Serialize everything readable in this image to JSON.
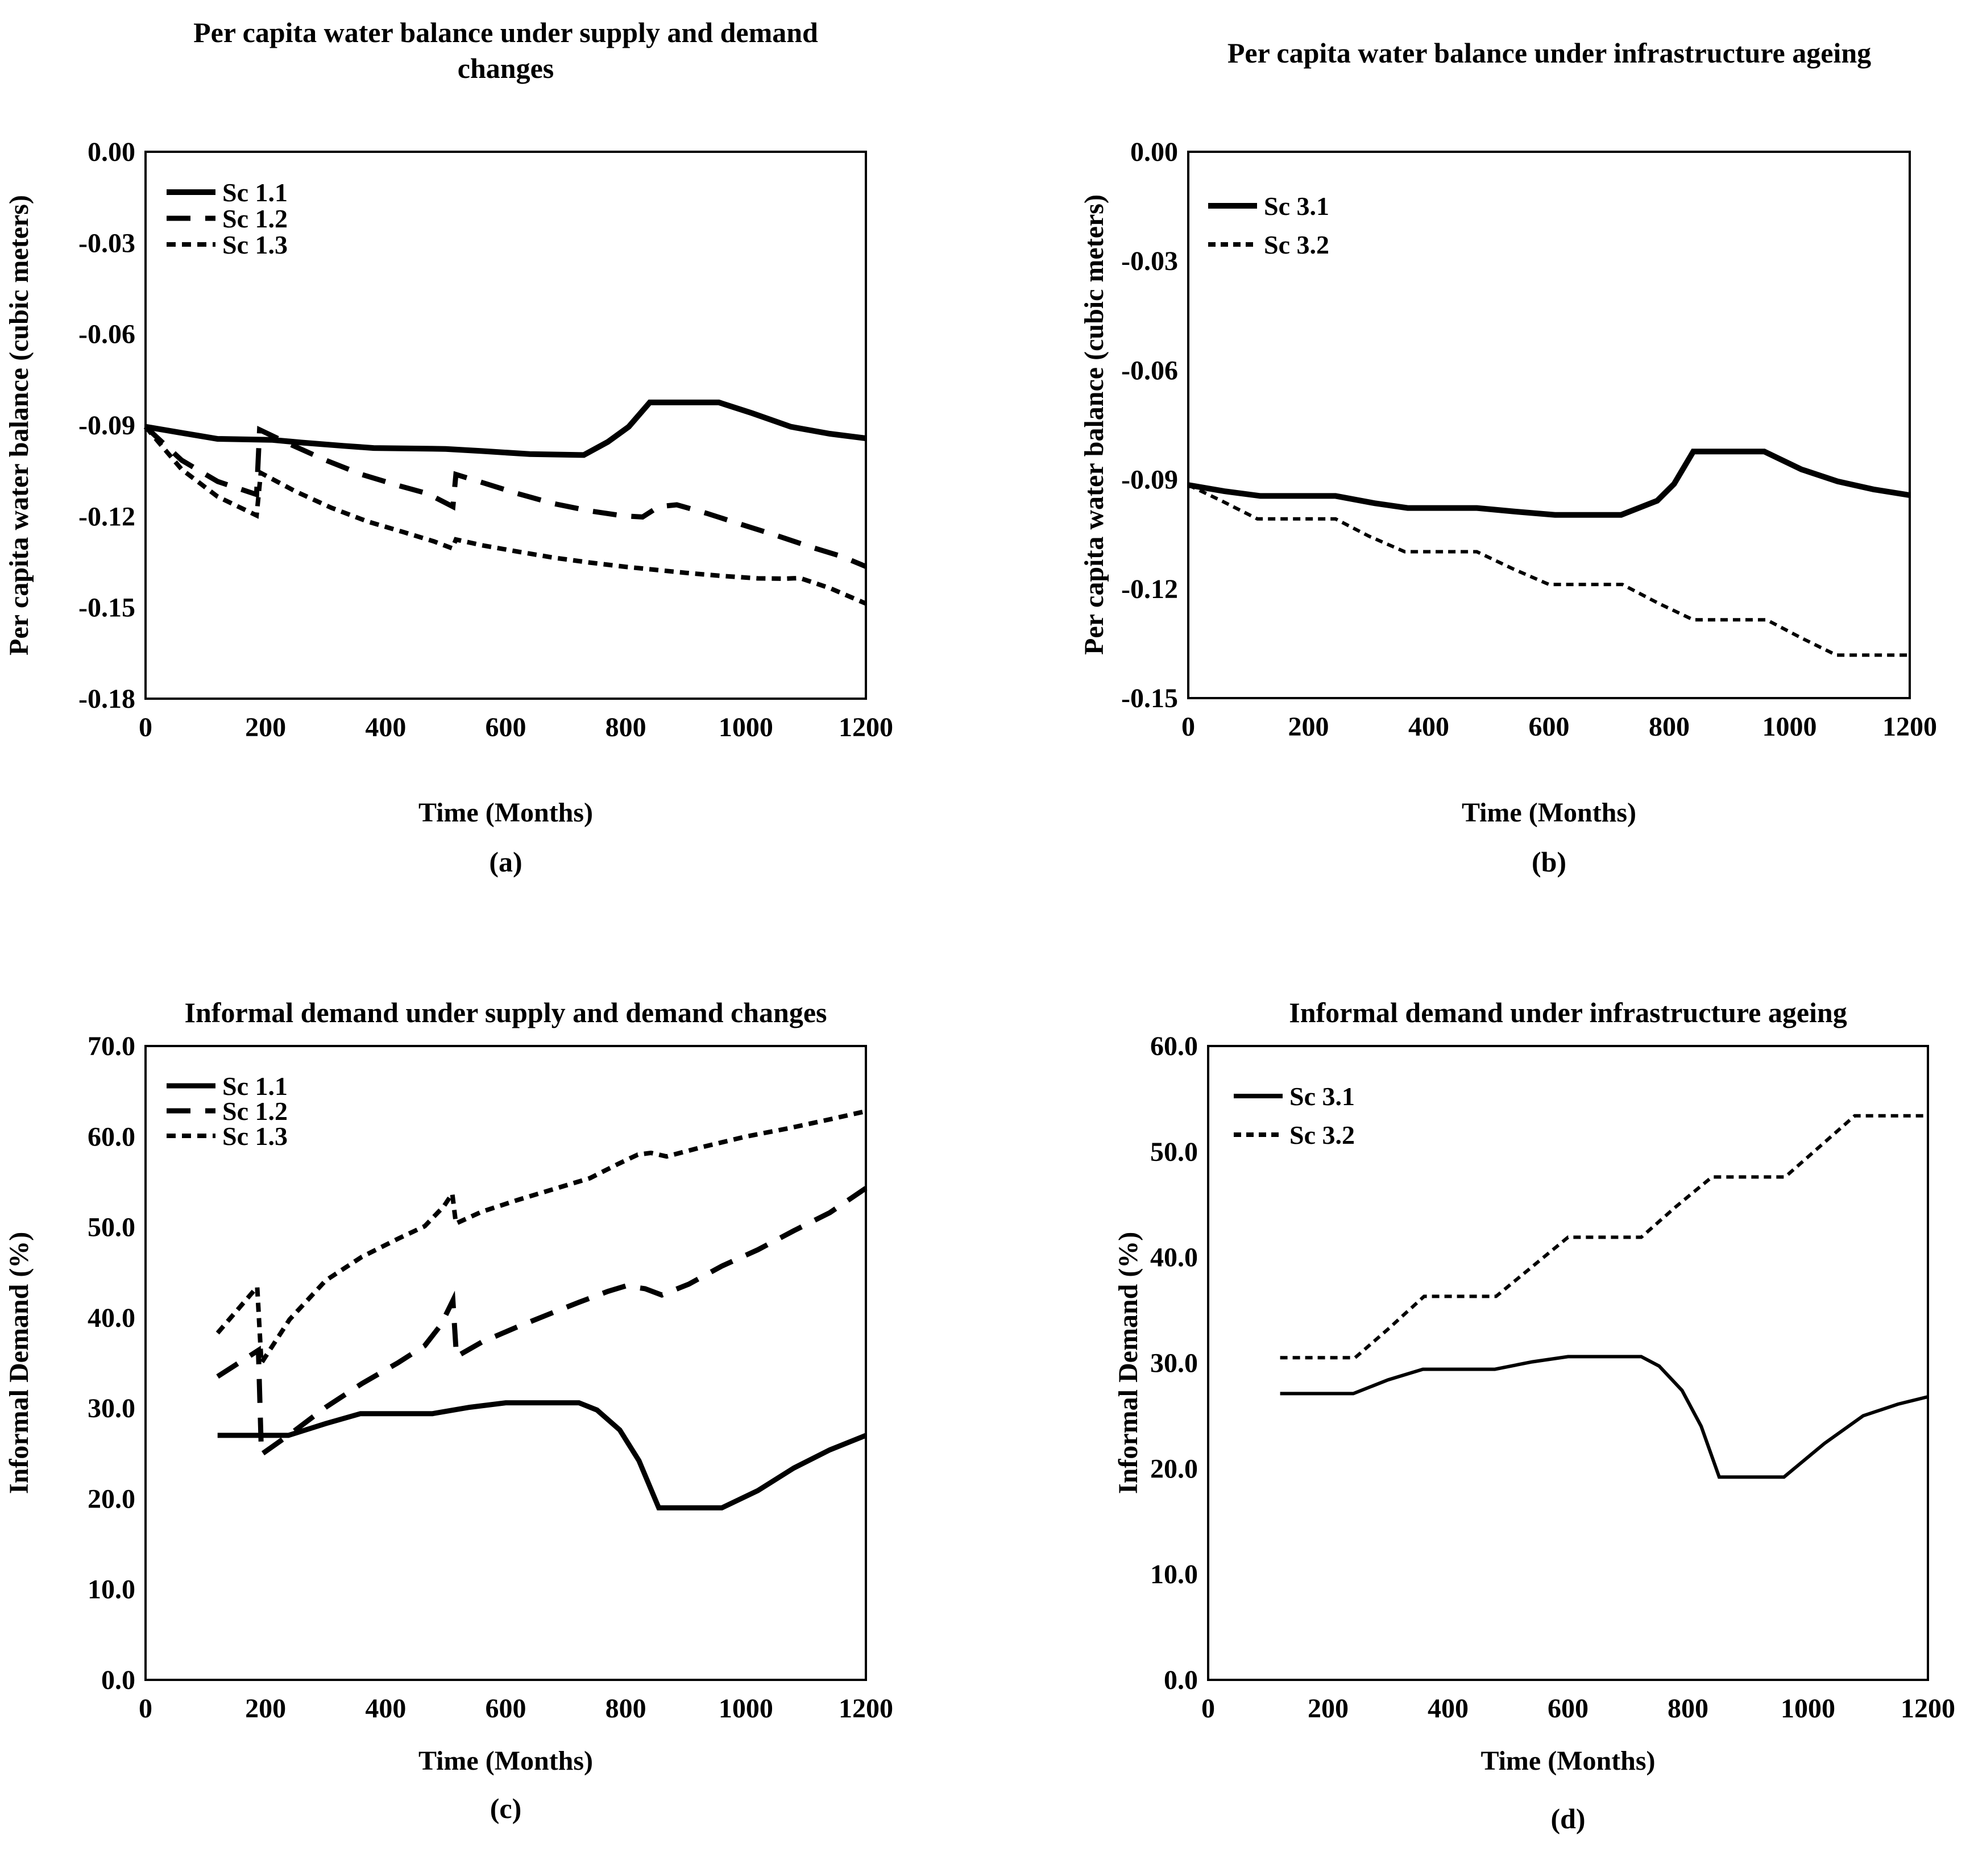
{
  "colors": {
    "line": "#000000",
    "background": "#ffffff",
    "text": "#000000"
  },
  "chart_data": [
    {
      "id": "a",
      "type": "line",
      "caption": "(a)",
      "title": "Per capita water balance under supply and demand changes",
      "title_lines": [
        "Per capita water balance under supply and demand",
        "changes"
      ],
      "xlabel": "Time (Months)",
      "ylabel": "Per capita water balance (cubic meters)",
      "x_range": [
        0,
        1200
      ],
      "y_range": [
        -0.18,
        0
      ],
      "x_ticks": [
        0,
        200,
        400,
        600,
        800,
        1000,
        1200
      ],
      "y_ticks": [
        {
          "value": 0,
          "label": "0.00"
        },
        {
          "value": -0.03,
          "label": "-0.03"
        },
        {
          "value": -0.06,
          "label": "-0.06"
        },
        {
          "value": -0.09,
          "label": "-0.09"
        },
        {
          "value": -0.12,
          "label": "-0.12"
        },
        {
          "value": -0.15,
          "label": "-0.15"
        },
        {
          "value": -0.18,
          "label": "-0.18"
        }
      ],
      "grid": false,
      "legend_position": "top-left",
      "series": [
        {
          "name": "Sc 1.1",
          "line_style": "solid",
          "points": [
            [
              0,
              -0.0905
            ],
            [
              60,
              -0.0925
            ],
            [
              120,
              -0.0945
            ],
            [
              210,
              -0.0948
            ],
            [
              260,
              -0.0957
            ],
            [
              330,
              -0.0968
            ],
            [
              380,
              -0.0975
            ],
            [
              500,
              -0.0978
            ],
            [
              560,
              -0.0985
            ],
            [
              640,
              -0.0995
            ],
            [
              730,
              -0.0998
            ],
            [
              770,
              -0.0955
            ],
            [
              805,
              -0.0905
            ],
            [
              840,
              -0.0825
            ],
            [
              955,
              -0.0825
            ],
            [
              1010,
              -0.086
            ],
            [
              1075,
              -0.0905
            ],
            [
              1140,
              -0.0928
            ],
            [
              1200,
              -0.0943
            ]
          ]
        },
        {
          "name": "Sc 1.2",
          "line_style": "long-dash",
          "points": [
            [
              0,
              -0.0905
            ],
            [
              60,
              -0.1015
            ],
            [
              120,
              -0.1085
            ],
            [
              185,
              -0.1128
            ],
            [
              190,
              -0.0915
            ],
            [
              240,
              -0.0962
            ],
            [
              300,
              -0.1015
            ],
            [
              360,
              -0.1062
            ],
            [
              420,
              -0.1098
            ],
            [
              470,
              -0.1125
            ],
            [
              512,
              -0.1168
            ],
            [
              517,
              -0.1062
            ],
            [
              560,
              -0.1088
            ],
            [
              620,
              -0.1125
            ],
            [
              680,
              -0.1158
            ],
            [
              740,
              -0.1182
            ],
            [
              795,
              -0.1198
            ],
            [
              828,
              -0.1202
            ],
            [
              855,
              -0.1168
            ],
            [
              885,
              -0.1162
            ],
            [
              935,
              -0.119
            ],
            [
              990,
              -0.1225
            ],
            [
              1050,
              -0.1262
            ],
            [
              1110,
              -0.1302
            ],
            [
              1160,
              -0.1332
            ],
            [
              1200,
              -0.1365
            ]
          ]
        },
        {
          "name": "Sc 1.3",
          "line_style": "short-dash",
          "points": [
            [
              0,
              -0.0905
            ],
            [
              60,
              -0.1045
            ],
            [
              120,
              -0.1135
            ],
            [
              185,
              -0.1197
            ],
            [
              192,
              -0.1057
            ],
            [
              250,
              -0.1118
            ],
            [
              310,
              -0.1172
            ],
            [
              370,
              -0.1217
            ],
            [
              430,
              -0.1252
            ],
            [
              480,
              -0.1282
            ],
            [
              511,
              -0.1305
            ],
            [
              517,
              -0.1276
            ],
            [
              560,
              -0.1295
            ],
            [
              620,
              -0.1316
            ],
            [
              680,
              -0.1336
            ],
            [
              740,
              -0.1352
            ],
            [
              800,
              -0.1366
            ],
            [
              850,
              -0.1376
            ],
            [
              900,
              -0.1386
            ],
            [
              960,
              -0.1396
            ],
            [
              1020,
              -0.1404
            ],
            [
              1065,
              -0.1405
            ],
            [
              1090,
              -0.1403
            ],
            [
              1140,
              -0.1436
            ],
            [
              1200,
              -0.1487
            ]
          ]
        }
      ]
    },
    {
      "id": "b",
      "type": "line",
      "caption": "(b)",
      "title": "Per capita water balance under infrastructure ageing",
      "title_lines": [
        "Per capita water balance under infrastructure ageing"
      ],
      "xlabel": "Time (Months)",
      "ylabel": "Per capita water balance (cubic meters)",
      "x_range": [
        0,
        1200
      ],
      "y_range": [
        -0.15,
        0
      ],
      "x_ticks": [
        0,
        200,
        400,
        600,
        800,
        1000,
        1200
      ],
      "y_ticks": [
        {
          "value": 0,
          "label": "0.00"
        },
        {
          "value": -0.03,
          "label": "-0.03"
        },
        {
          "value": -0.06,
          "label": "-0.06"
        },
        {
          "value": -0.09,
          "label": "-0.09"
        },
        {
          "value": -0.12,
          "label": "-0.12"
        },
        {
          "value": -0.15,
          "label": "-0.15"
        }
      ],
      "grid": false,
      "legend_position": "top-left",
      "series": [
        {
          "name": "Sc 3.1",
          "line_style": "solid",
          "points": [
            [
              0,
              -0.0915
            ],
            [
              60,
              -0.0932
            ],
            [
              120,
              -0.0945
            ],
            [
              245,
              -0.0945
            ],
            [
              310,
              -0.0965
            ],
            [
              365,
              -0.0978
            ],
            [
              480,
              -0.0978
            ],
            [
              545,
              -0.0988
            ],
            [
              610,
              -0.0997
            ],
            [
              720,
              -0.0997
            ],
            [
              780,
              -0.0958
            ],
            [
              808,
              -0.0912
            ],
            [
              840,
              -0.0823
            ],
            [
              958,
              -0.0823
            ],
            [
              1020,
              -0.0872
            ],
            [
              1080,
              -0.0905
            ],
            [
              1140,
              -0.0927
            ],
            [
              1200,
              -0.0943
            ]
          ]
        },
        {
          "name": "Sc 3.2",
          "line_style": "fine-dash",
          "points": [
            [
              0,
              -0.0915
            ],
            [
              55,
              -0.0958
            ],
            [
              115,
              -0.1008
            ],
            [
              245,
              -0.1008
            ],
            [
              300,
              -0.1055
            ],
            [
              360,
              -0.1098
            ],
            [
              480,
              -0.1098
            ],
            [
              540,
              -0.1145
            ],
            [
              600,
              -0.1188
            ],
            [
              722,
              -0.1188
            ],
            [
              780,
              -0.1238
            ],
            [
              840,
              -0.1285
            ],
            [
              962,
              -0.1285
            ],
            [
              1020,
              -0.1335
            ],
            [
              1078,
              -0.1382
            ],
            [
              1200,
              -0.1382
            ]
          ]
        }
      ]
    },
    {
      "id": "c",
      "type": "line",
      "caption": "(c)",
      "title": "Informal demand under supply and demand changes",
      "title_lines": [
        "Informal demand under supply and demand changes"
      ],
      "xlabel": "Time (Months)",
      "ylabel": "Informal Demand (%)",
      "x_range": [
        0,
        1200
      ],
      "y_range": [
        0,
        70
      ],
      "x_ticks": [
        0,
        200,
        400,
        600,
        800,
        1000,
        1200
      ],
      "y_ticks": [
        {
          "value": 70,
          "label": "70.0"
        },
        {
          "value": 60,
          "label": "60.0"
        },
        {
          "value": 50,
          "label": "50.0"
        },
        {
          "value": 40,
          "label": "40.0"
        },
        {
          "value": 30,
          "label": "30.0"
        },
        {
          "value": 20,
          "label": "20.0"
        },
        {
          "value": 10,
          "label": "10.0"
        },
        {
          "value": 0,
          "label": "0.0"
        }
      ],
      "grid": false,
      "legend_position": "top-left",
      "series": [
        {
          "name": "Sc 1.1",
          "line_style": "solid",
          "points": [
            [
              120,
              27.0
            ],
            [
              238,
              27.0
            ],
            [
              300,
              28.3
            ],
            [
              358,
              29.4
            ],
            [
              478,
              29.4
            ],
            [
              540,
              30.1
            ],
            [
              600,
              30.6
            ],
            [
              722,
              30.6
            ],
            [
              752,
              29.8
            ],
            [
              790,
              27.6
            ],
            [
              822,
              24.2
            ],
            [
              855,
              19.0
            ],
            [
              960,
              19.0
            ],
            [
              1020,
              20.9
            ],
            [
              1080,
              23.4
            ],
            [
              1140,
              25.4
            ],
            [
              1200,
              27.0
            ]
          ]
        },
        {
          "name": "Sc 1.2",
          "line_style": "long-dash",
          "points": [
            [
              120,
              33.5
            ],
            [
              188,
              36.4
            ],
            [
              193,
              24.9
            ],
            [
              240,
              27.1
            ],
            [
              300,
              30.1
            ],
            [
              360,
              32.7
            ],
            [
              420,
              35.0
            ],
            [
              465,
              36.9
            ],
            [
              492,
              39.2
            ],
            [
              512,
              41.9
            ],
            [
              518,
              35.7
            ],
            [
              560,
              37.3
            ],
            [
              620,
              39.0
            ],
            [
              680,
              40.6
            ],
            [
              722,
              41.7
            ],
            [
              770,
              42.9
            ],
            [
              800,
              43.5
            ],
            [
              832,
              43.2
            ],
            [
              860,
              42.5
            ],
            [
              905,
              43.7
            ],
            [
              960,
              45.7
            ],
            [
              1020,
              47.5
            ],
            [
              1080,
              49.6
            ],
            [
              1140,
              51.6
            ],
            [
              1200,
              54.3
            ]
          ]
        },
        {
          "name": "Sc 1.3",
          "line_style": "short-dash",
          "points": [
            [
              120,
              38.3
            ],
            [
              186,
              43.4
            ],
            [
              193,
              35.0
            ],
            [
              240,
              39.8
            ],
            [
              300,
              44.1
            ],
            [
              360,
              46.7
            ],
            [
              420,
              48.7
            ],
            [
              465,
              50.1
            ],
            [
              497,
              52.3
            ],
            [
              511,
              53.7
            ],
            [
              517,
              50.4
            ],
            [
              560,
              51.7
            ],
            [
              620,
              53.0
            ],
            [
              680,
              54.2
            ],
            [
              740,
              55.4
            ],
            [
              788,
              57.0
            ],
            [
              820,
              58.0
            ],
            [
              842,
              58.2
            ],
            [
              868,
              57.8
            ],
            [
              925,
              58.8
            ],
            [
              1000,
              60.0
            ],
            [
              1070,
              60.9
            ],
            [
              1140,
              61.9
            ],
            [
              1200,
              62.8
            ]
          ]
        }
      ]
    },
    {
      "id": "d",
      "type": "line",
      "caption": "(d)",
      "title": "Informal demand under infrastructure ageing",
      "title_lines": [
        "Informal demand under infrastructure ageing"
      ],
      "xlabel": "Time (Months)",
      "ylabel": "Informal Demand (%)",
      "x_range": [
        0,
        1200
      ],
      "y_range": [
        0,
        60
      ],
      "x_ticks": [
        0,
        200,
        400,
        600,
        800,
        1000,
        1200
      ],
      "y_ticks": [
        {
          "value": 60,
          "label": "60.0"
        },
        {
          "value": 50,
          "label": "50.0"
        },
        {
          "value": 40,
          "label": "40.0"
        },
        {
          "value": 30,
          "label": "30.0"
        },
        {
          "value": 20,
          "label": "20.0"
        },
        {
          "value": 10,
          "label": "10.0"
        },
        {
          "value": 0,
          "label": "0.0"
        }
      ],
      "grid": false,
      "legend_position": "top-left",
      "series": [
        {
          "name": "Sc 3.1",
          "line_style": "solid",
          "points": [
            [
              120,
              27.1
            ],
            [
              242,
              27.1
            ],
            [
              300,
              28.4
            ],
            [
              358,
              29.4
            ],
            [
              478,
              29.4
            ],
            [
              540,
              30.1
            ],
            [
              600,
              30.6
            ],
            [
              722,
              30.6
            ],
            [
              752,
              29.7
            ],
            [
              790,
              27.4
            ],
            [
              822,
              24.0
            ],
            [
              852,
              19.2
            ],
            [
              960,
              19.2
            ],
            [
              1028,
              22.4
            ],
            [
              1092,
              25.0
            ],
            [
              1150,
              26.1
            ],
            [
              1200,
              26.8
            ]
          ]
        },
        {
          "name": "Sc 3.2",
          "line_style": "fine-dash",
          "points": [
            [
              120,
              30.5
            ],
            [
              245,
              30.5
            ],
            [
              300,
              33.2
            ],
            [
              360,
              36.3
            ],
            [
              480,
              36.3
            ],
            [
              540,
              39.1
            ],
            [
              600,
              41.9
            ],
            [
              722,
              41.9
            ],
            [
              780,
              44.8
            ],
            [
              840,
              47.6
            ],
            [
              962,
              47.6
            ],
            [
              1020,
              50.5
            ],
            [
              1078,
              53.4
            ],
            [
              1200,
              53.4
            ]
          ]
        }
      ]
    }
  ]
}
